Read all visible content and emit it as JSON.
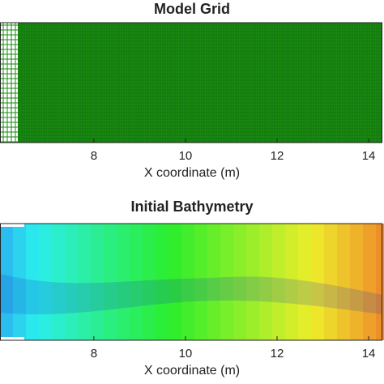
{
  "chart_data": [
    {
      "type": "grid",
      "title": "Model Grid",
      "xlabel": "X coordinate (m)",
      "xlim": [
        5.95,
        14.3
      ],
      "xticks": [
        8,
        10,
        12,
        14
      ],
      "color": "#1a8a12"
    },
    {
      "type": "heatmap",
      "title": "Initial Bathymetry",
      "xlabel": "X coordinate (m)",
      "xlim": [
        5.95,
        14.3
      ],
      "xticks": [
        8,
        10,
        12,
        14
      ]
    }
  ]
}
